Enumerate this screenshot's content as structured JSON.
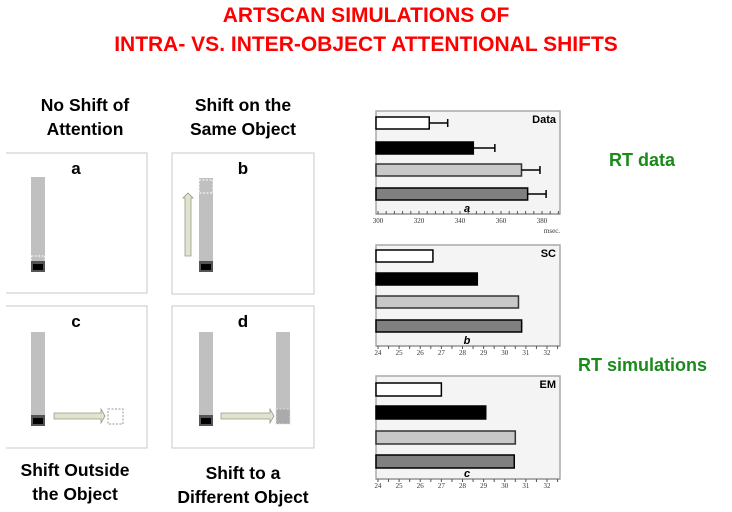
{
  "title": {
    "line1": "ARTSCAN SIMULATIONS OF",
    "line2": "INTRA- VS. INTER-OBJECT ATTENTIONAL SHIFTS"
  },
  "panels": [
    {
      "letter": "a",
      "caption1": "No Shift of",
      "caption2": "Attention"
    },
    {
      "letter": "b",
      "caption1": "Shift on the",
      "caption2": "Same Object"
    },
    {
      "letter": "c",
      "caption1": "Shift Outside",
      "caption2": "the Object"
    },
    {
      "letter": "d",
      "caption1": "Shift to a",
      "caption2": "Different Object"
    }
  ],
  "labels": {
    "rt_data": "RT data",
    "rt_sim": "RT simulations"
  },
  "colors": {
    "title": "#ff0000",
    "label_green": "#1a8a1a",
    "bar_fills": [
      "#ffffff",
      "#000000",
      "#c8c8c8",
      "#808080"
    ]
  },
  "chart_data": [
    {
      "type": "bar",
      "orientation": "horizontal",
      "title": "Data",
      "sublabel": "a",
      "xlabel": "msec.",
      "xlim": [
        300,
        388
      ],
      "xticks": [
        "300",
        "320",
        "340",
        "360",
        "380"
      ],
      "xtick_values": [
        300,
        320,
        340,
        360,
        380
      ],
      "values": [
        325,
        346.5,
        370,
        373
      ],
      "errors": [
        9,
        10.5,
        9,
        9
      ],
      "grid": false
    },
    {
      "type": "bar",
      "orientation": "horizontal",
      "title": "SC",
      "sublabel": "b",
      "xlabel": "",
      "xlim": [
        24,
        32.5
      ],
      "xticks": [
        "24",
        "25",
        "26",
        "27",
        "28",
        "29",
        "30",
        "31",
        "32"
      ],
      "xtick_values": [
        24,
        25,
        26,
        27,
        28,
        29,
        30,
        31,
        32
      ],
      "values": [
        26.6,
        28.7,
        30.65,
        30.8
      ],
      "grid": false
    },
    {
      "type": "bar",
      "orientation": "horizontal",
      "title": "EM",
      "sublabel": "c",
      "xlabel": "",
      "xlim": [
        24,
        32.5
      ],
      "xticks": [
        "24",
        "25",
        "26",
        "27",
        "28",
        "29",
        "30",
        "31",
        "32"
      ],
      "xtick_values": [
        24,
        25,
        26,
        27,
        28,
        29,
        30,
        31,
        32
      ],
      "values": [
        27.0,
        29.1,
        30.5,
        30.45
      ],
      "grid": false
    }
  ]
}
